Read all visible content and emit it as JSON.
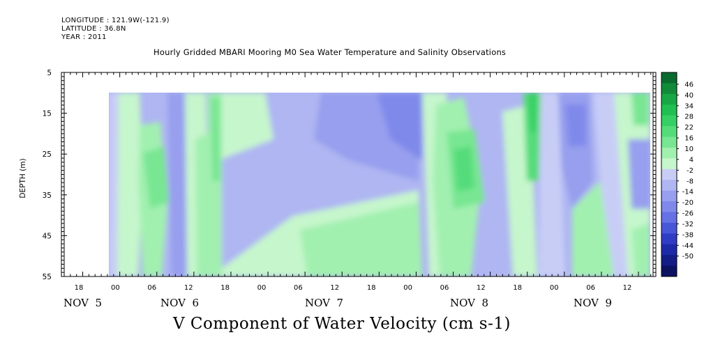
{
  "header": {
    "longitude": "LONGITUDE : 121.9W(-121.9)",
    "latitude": "LATITUDE : 36.8N",
    "year": "YEAR : 2011"
  },
  "chart_data": {
    "type": "heatmap",
    "title": "Hourly Gridded MBARI Mooring M0 Sea Water Temperature and Salinity Observations",
    "xlabel": "V Component of Water Velocity (cm s-1)",
    "ylabel": "DEPTH (m)",
    "y_ticks": [
      "5",
      "15",
      "25",
      "35",
      "45",
      "55"
    ],
    "ylim": [
      5,
      55
    ],
    "y_reversed": true,
    "x_hour_ticks": [
      "18",
      "00",
      "06",
      "12",
      "18",
      "00",
      "06",
      "12",
      "18",
      "00",
      "06",
      "12",
      "18",
      "00",
      "06",
      "12"
    ],
    "x_day_labels": [
      "NOV  5",
      "NOV  6",
      "NOV  7",
      "NOV  8",
      "NOV  9"
    ],
    "data_depth_range": [
      10,
      55
    ],
    "colorbar_levels": [
      "46",
      "40",
      "34",
      "28",
      "22",
      "16",
      "10",
      "4",
      "-2",
      "-8",
      "-14",
      "-20",
      "-26",
      "-32",
      "-38",
      "-44",
      "-50"
    ],
    "colorbar_colors": [
      "#0b6b2e",
      "#128a3a",
      "#18a745",
      "#20bf52",
      "#35d064",
      "#55dc7a",
      "#78e692",
      "#a2f0b0",
      "#c6f6cc",
      "#c8cdf6",
      "#afb6f2",
      "#979fee",
      "#7f89ea",
      "#6571e4",
      "#4856d8",
      "#2f3dc4",
      "#1d2aa8",
      "#141d86",
      "#0c1260"
    ],
    "regions": [
      {
        "time": "NOV 5 21:00 - NOV 6 06:00",
        "pattern": "weak negative/positive bands, -8 to 4"
      },
      {
        "time": "NOV 6 06:00 - NOV 6 12:00",
        "pattern": "positive, up to 16 near 20-30 m"
      },
      {
        "time": "NOV 6 18:00 - NOV 7 02:00",
        "pattern": "positive 4-10 upper layer"
      },
      {
        "time": "NOV 7 00:00 - NOV 8 03:00",
        "pattern": "negative -2 to -14 upper, positive 4-10 below 33 m"
      },
      {
        "time": "NOV 8 06:00 - NOV 8 12:00",
        "pattern": "positive up to 22 near 25 m"
      },
      {
        "time": "NOV 8 20:00",
        "pattern": "positive up to 28 near surface"
      },
      {
        "time": "NOV 9 00:00 - NOV 9 06:00",
        "pattern": "negative -8 to -20"
      },
      {
        "time": "NOV 9 06:00 - NOV 9 16:00",
        "pattern": "mixed, positive up to 10"
      }
    ]
  }
}
